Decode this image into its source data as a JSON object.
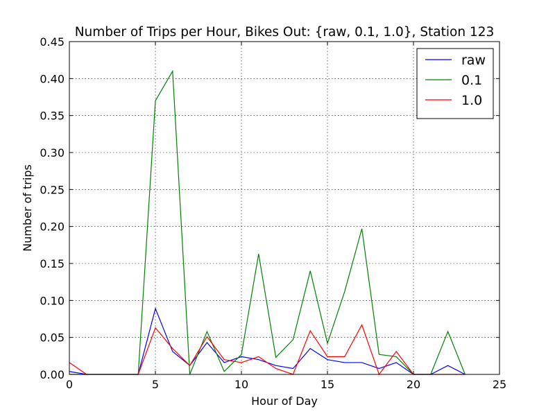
{
  "chart_data": {
    "type": "line",
    "title": "Number of Trips per Hour, Bikes Out:  {raw, 0.1, 1.0}, Station 123",
    "xlabel": "Hour of Day",
    "ylabel": "Number of trips",
    "xlim": [
      0,
      25
    ],
    "ylim": [
      0,
      0.45
    ],
    "xticks": [
      0,
      5,
      10,
      15,
      20,
      25
    ],
    "xtick_labels": [
      "0",
      "5",
      "10",
      "15",
      "20",
      "25"
    ],
    "yticks": [
      0,
      0.05,
      0.1,
      0.15,
      0.2,
      0.25,
      0.3,
      0.35,
      0.4,
      0.45
    ],
    "ytick_labels": [
      "0.00",
      "0.05",
      "0.10",
      "0.15",
      "0.20",
      "0.25",
      "0.30",
      "0.35",
      "0.40",
      "0.45"
    ],
    "grid": true,
    "legend_position": "top-right",
    "x": [
      0,
      1,
      2,
      3,
      4,
      5,
      6,
      7,
      8,
      9,
      10,
      11,
      12,
      13,
      14,
      15,
      16,
      17,
      18,
      19,
      20,
      21,
      22,
      23
    ],
    "series": [
      {
        "name": "raw",
        "color": "#0000ff",
        "values": [
          0.004,
          0,
          0,
          0,
          0,
          0.089,
          0.031,
          0.012,
          0.043,
          0.016,
          0.024,
          0.02,
          0.012,
          0.008,
          0.035,
          0.02,
          0.016,
          0.016,
          0.008,
          0.016,
          0,
          0,
          0.012,
          0
        ]
      },
      {
        "name": "0.1",
        "color": "#008000",
        "values": [
          0,
          0,
          0,
          0,
          0,
          0.37,
          0.41,
          0,
          0.058,
          0.004,
          0.027,
          0.163,
          0.023,
          0.047,
          0.14,
          0.042,
          0.112,
          0.197,
          0.027,
          0.024,
          0,
          0,
          0.058,
          0
        ]
      },
      {
        "name": "1.0",
        "color": "#ff0000",
        "values": [
          0.016,
          0,
          0,
          0,
          0,
          0.063,
          0.035,
          0.012,
          0.051,
          0.02,
          0.016,
          0.024,
          0.008,
          0,
          0.059,
          0.024,
          0.024,
          0.067,
          0,
          0.031,
          0,
          0,
          0,
          0
        ]
      }
    ]
  }
}
